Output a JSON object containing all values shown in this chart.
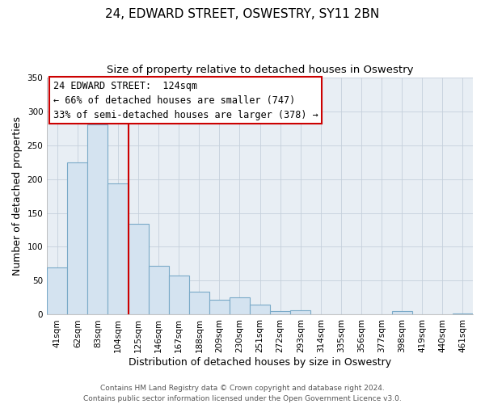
{
  "title": "24, EDWARD STREET, OSWESTRY, SY11 2BN",
  "subtitle": "Size of property relative to detached houses in Oswestry",
  "xlabel": "Distribution of detached houses by size in Oswestry",
  "ylabel": "Number of detached properties",
  "bar_labels": [
    "41sqm",
    "62sqm",
    "83sqm",
    "104sqm",
    "125sqm",
    "146sqm",
    "167sqm",
    "188sqm",
    "209sqm",
    "230sqm",
    "251sqm",
    "272sqm",
    "293sqm",
    "314sqm",
    "335sqm",
    "356sqm",
    "377sqm",
    "398sqm",
    "419sqm",
    "440sqm",
    "461sqm"
  ],
  "bar_values": [
    70,
    224,
    280,
    193,
    134,
    72,
    58,
    34,
    22,
    25,
    15,
    5,
    6,
    1,
    0,
    1,
    0,
    5,
    1,
    0,
    2
  ],
  "bar_color": "#d4e3f0",
  "bar_edge_color": "#7aaac8",
  "vline_x": 3.5,
  "vline_color": "#cc0000",
  "annotation_title": "24 EDWARD STREET:  124sqm",
  "annotation_line1": "← 66% of detached houses are smaller (747)",
  "annotation_line2": "33% of semi-detached houses are larger (378) →",
  "annotation_box_facecolor": "#ffffff",
  "annotation_box_edge": "#cc0000",
  "ylim": [
    0,
    350
  ],
  "bg_color": "#e8eef4",
  "footer1": "Contains HM Land Registry data © Crown copyright and database right 2024.",
  "footer2": "Contains public sector information licensed under the Open Government Licence v3.0.",
  "title_fontsize": 11,
  "subtitle_fontsize": 9.5,
  "axis_label_fontsize": 9,
  "tick_fontsize": 7.5,
  "annotation_fontsize": 8.5,
  "footer_fontsize": 6.5
}
